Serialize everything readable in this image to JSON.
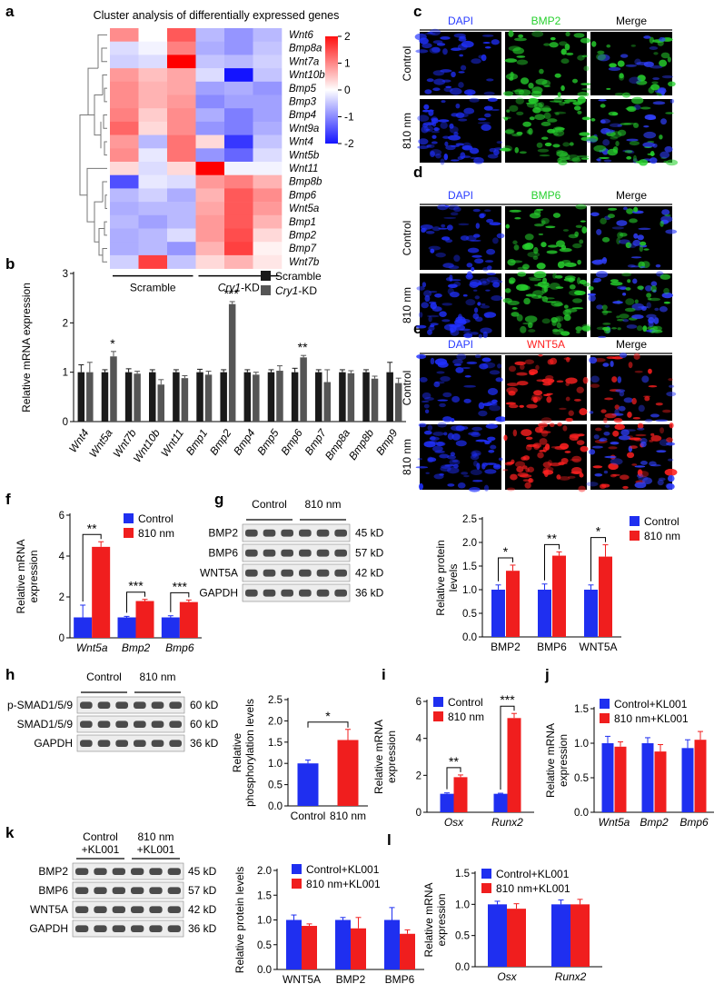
{
  "panel_letters": [
    "a",
    "b",
    "c",
    "d",
    "e",
    "f",
    "g",
    "h",
    "i",
    "j",
    "k",
    "l"
  ],
  "colors": {
    "blue": "#1f2ff0",
    "red": "#f01e1e",
    "black": "#1a1a1a",
    "gray": "#555555"
  },
  "heatmap": {
    "title": "Cluster analysis of differentially expressed genes",
    "genes": [
      "Wnt6",
      "Bmp8a",
      "Wnt7a",
      "Wnt10b",
      "Bmp5",
      "Bmp3",
      "Bmp4",
      "Wnt9a",
      "Wnt4",
      "Wnt5b",
      "Wnt11",
      "Bmp8b",
      "Bmp6",
      "Wnt5a",
      "Bmp1",
      "Bmp2",
      "Bmp7",
      "Wnt7b"
    ],
    "groups": [
      "Scramble",
      "Cry1-KD"
    ],
    "scale_ticks": [
      "2",
      "1",
      "0",
      "-1",
      "-2"
    ],
    "matrix": [
      [
        0.9,
        0.0,
        1.3,
        -0.6,
        -0.9,
        -0.6
      ],
      [
        -0.3,
        -0.1,
        1.0,
        -0.7,
        -0.9,
        -0.5
      ],
      [
        -0.4,
        -0.3,
        2.0,
        -0.5,
        -0.6,
        -0.4
      ],
      [
        0.8,
        0.5,
        0.7,
        -0.3,
        -2.0,
        -0.5
      ],
      [
        0.9,
        0.6,
        0.7,
        -0.8,
        -0.7,
        -0.9
      ],
      [
        0.9,
        0.6,
        0.8,
        -1.0,
        -0.8,
        -0.8
      ],
      [
        1.0,
        0.4,
        0.9,
        -0.7,
        -1.1,
        -0.8
      ],
      [
        1.2,
        0.3,
        0.9,
        -0.9,
        -1.1,
        -0.7
      ],
      [
        0.8,
        -0.6,
        1.1,
        0.3,
        -1.7,
        -0.5
      ],
      [
        0.9,
        -0.2,
        1.1,
        -0.9,
        -1.3,
        -0.3
      ],
      [
        0.3,
        -0.3,
        0.3,
        2.0,
        -0.1,
        -0.1
      ],
      [
        -1.5,
        -0.2,
        -0.3,
        0.8,
        1.0,
        0.6
      ],
      [
        -0.6,
        -0.4,
        -0.7,
        0.6,
        1.3,
        0.9
      ],
      [
        -0.7,
        -0.6,
        -0.6,
        0.7,
        1.3,
        0.8
      ],
      [
        -0.6,
        -0.8,
        -0.6,
        0.8,
        1.3,
        0.6
      ],
      [
        -0.7,
        -0.6,
        -0.3,
        0.8,
        1.4,
        0.3
      ],
      [
        -0.7,
        -0.6,
        -0.9,
        0.6,
        1.5,
        0.1
      ],
      [
        -0.4,
        1.5,
        -0.5,
        0.3,
        0.6,
        0.2
      ]
    ]
  },
  "micro": {
    "c": {
      "cols": [
        "DAPI",
        "BMP2",
        "Merge"
      ],
      "rows": [
        "Control",
        "810 nm"
      ],
      "marker_color": "#27d12e"
    },
    "d": {
      "cols": [
        "DAPI",
        "BMP6",
        "Merge"
      ],
      "rows": [
        "Control",
        "810 nm"
      ],
      "marker_color": "#27d12e"
    },
    "e": {
      "cols": [
        "DAPI",
        "WNT5A",
        "Merge"
      ],
      "rows": [
        "Control",
        "810 nm"
      ],
      "marker_color": "#ff2020"
    }
  },
  "blots": {
    "g": {
      "group_labels": [
        "Control",
        "810 nm"
      ],
      "rows": [
        [
          "BMP2",
          "45 kD"
        ],
        [
          "BMP6",
          "57 kD"
        ],
        [
          "WNT5A",
          "42 kD"
        ],
        [
          "GAPDH",
          "36 kD"
        ]
      ]
    },
    "h": {
      "group_labels": [
        "Control",
        "810 nm"
      ],
      "rows": [
        [
          "p-SMAD1/5/9",
          "60 kD"
        ],
        [
          "SMAD1/5/9",
          "60 kD"
        ],
        [
          "GAPDH",
          "36 kD"
        ]
      ]
    },
    "k": {
      "group_labels": [
        "Control\n+KL001",
        "810 nm\n+KL001"
      ],
      "rows": [
        [
          "BMP2",
          "45 kD"
        ],
        [
          "BMP6",
          "57 kD"
        ],
        [
          "WNT5A",
          "42 kD"
        ],
        [
          "GAPDH",
          "36 kD"
        ]
      ]
    }
  },
  "chart_data": [
    {
      "panel": "b",
      "type": "bar",
      "ylabel": "Relative mRNA expression",
      "ylim": [
        0,
        3
      ],
      "yticks": [
        0,
        1,
        2,
        3
      ],
      "categories": [
        "Wnt4",
        "Wnt5a",
        "Wnt7b",
        "Wnt10b",
        "Wnt11",
        "Bmp1",
        "Bmp2",
        "Bmp4",
        "Bmp5",
        "Bmp6",
        "Bmp7",
        "Bmp8a",
        "Bmp8b",
        "Bmp9"
      ],
      "series": [
        {
          "name": "Scramble",
          "values": [
            1,
            1,
            1,
            1,
            1,
            1,
            1,
            1,
            1,
            1,
            1,
            1,
            1,
            1
          ],
          "errors": [
            0.15,
            0.05,
            0.07,
            0.05,
            0.05,
            0.06,
            0.05,
            0.05,
            0.05,
            0.08,
            0.05,
            0.05,
            0.05,
            0.2
          ]
        },
        {
          "name": "Cry1-KD",
          "values": [
            1.0,
            1.32,
            0.97,
            0.75,
            0.88,
            0.95,
            2.38,
            0.95,
            1.03,
            1.3,
            0.8,
            0.98,
            0.87,
            0.78
          ],
          "errors": [
            0.2,
            0.1,
            0.05,
            0.1,
            0.05,
            0.07,
            0.05,
            0.05,
            0.1,
            0.04,
            0.25,
            0.05,
            0.05,
            0.1
          ]
        }
      ],
      "significance": [
        {
          "index": 1,
          "label": "*"
        },
        {
          "index": 6,
          "label": "***"
        },
        {
          "index": 9,
          "label": "**"
        }
      ]
    },
    {
      "panel": "f",
      "type": "bar",
      "ylabel": "Relative mRNA\nexpression",
      "ylim": [
        0,
        6
      ],
      "yticks": [
        0,
        2,
        4,
        6
      ],
      "categories": [
        "Wnt5a",
        "Bmp2",
        "Bmp6"
      ],
      "series": [
        {
          "name": "Control",
          "values": [
            1,
            1,
            1
          ],
          "errors": [
            0.6,
            0.05,
            0.08
          ]
        },
        {
          "name": "810 nm",
          "values": [
            4.45,
            1.8,
            1.75
          ],
          "errors": [
            0.25,
            0.08,
            0.1
          ]
        }
      ],
      "significance": [
        {
          "index": 0,
          "label": "**"
        },
        {
          "index": 1,
          "label": "***"
        },
        {
          "index": 2,
          "label": "***"
        }
      ]
    },
    {
      "panel": "g",
      "type": "bar",
      "ylabel": "Relative protein\nlevels",
      "ylim": [
        0,
        2.5
      ],
      "yticks": [
        0,
        0.5,
        1,
        1.5,
        2,
        2.5
      ],
      "categories": [
        "BMP2",
        "BMP6",
        "WNT5A"
      ],
      "series": [
        {
          "name": "Control",
          "values": [
            1,
            1,
            1
          ],
          "errors": [
            0.1,
            0.12,
            0.1
          ]
        },
        {
          "name": "810 nm",
          "values": [
            1.4,
            1.72,
            1.7
          ],
          "errors": [
            0.12,
            0.08,
            0.25
          ]
        }
      ],
      "significance": [
        {
          "index": 0,
          "label": "*"
        },
        {
          "index": 1,
          "label": "**"
        },
        {
          "index": 2,
          "label": "*"
        }
      ]
    },
    {
      "panel": "h",
      "type": "bar",
      "ylabel": "Relative\nphosphorylation levels",
      "ylim": [
        0,
        2.5
      ],
      "yticks": [
        0,
        0.5,
        1,
        1.5,
        2,
        2.5
      ],
      "categories": [
        "Control",
        "810 nm"
      ],
      "series": [
        {
          "name": "",
          "values": [
            1.0,
            1.55
          ],
          "errors": [
            0.08,
            0.25
          ],
          "colors": [
            "blue",
            "red"
          ]
        }
      ],
      "significance": [
        {
          "pair": [
            0,
            1
          ],
          "label": "*"
        }
      ]
    },
    {
      "panel": "i",
      "type": "bar",
      "ylabel": "Relative mRNA\nexpression",
      "ylim": [
        0,
        6
      ],
      "yticks": [
        0,
        2,
        4,
        6
      ],
      "categories": [
        "Osx",
        "Runx2"
      ],
      "series": [
        {
          "name": "Control",
          "values": [
            1,
            1
          ],
          "errors": [
            0.05,
            0.03
          ]
        },
        {
          "name": "810 nm",
          "values": [
            1.9,
            5.1
          ],
          "errors": [
            0.12,
            0.25
          ]
        }
      ],
      "significance": [
        {
          "index": 0,
          "label": "**"
        },
        {
          "index": 1,
          "label": "***"
        }
      ]
    },
    {
      "panel": "j",
      "type": "bar",
      "ylabel": "Relative mRNA\nexpression",
      "ylim": [
        0,
        1.5
      ],
      "yticks": [
        0.0,
        0.5,
        1.0,
        1.5
      ],
      "categories": [
        "Wnt5a",
        "Bmp2",
        "Bmp6"
      ],
      "series": [
        {
          "name": "Control+KL001",
          "values": [
            1.0,
            1.0,
            0.93
          ],
          "errors": [
            0.1,
            0.08,
            0.12
          ]
        },
        {
          "name": "810 nm+KL001",
          "values": [
            0.95,
            0.88,
            1.05
          ],
          "errors": [
            0.07,
            0.1,
            0.12
          ]
        }
      ],
      "significance": []
    },
    {
      "panel": "k",
      "type": "bar",
      "ylabel": "Relative protein levels",
      "ylim": [
        0,
        2.0
      ],
      "yticks": [
        0.0,
        0.5,
        1.0,
        1.5,
        2.0
      ],
      "categories": [
        "WNT5A",
        "BMP2",
        "BMP6"
      ],
      "series": [
        {
          "name": "Control+KL001",
          "values": [
            1.0,
            1.0,
            1.0
          ],
          "errors": [
            0.1,
            0.05,
            0.25
          ]
        },
        {
          "name": "810 nm+KL001",
          "values": [
            0.88,
            0.83,
            0.72
          ],
          "errors": [
            0.04,
            0.22,
            0.08
          ]
        }
      ],
      "significance": []
    },
    {
      "panel": "l",
      "type": "bar",
      "ylabel": "Relative mRNA\nexpression",
      "ylim": [
        0,
        1.5
      ],
      "yticks": [
        0.0,
        0.5,
        1.0,
        1.5
      ],
      "categories": [
        "Osx",
        "Runx2"
      ],
      "series": [
        {
          "name": "Control+KL001",
          "values": [
            1.0,
            1.0
          ],
          "errors": [
            0.05,
            0.07
          ]
        },
        {
          "name": "810 nm+KL001",
          "values": [
            0.93,
            1.0
          ],
          "errors": [
            0.08,
            0.08
          ]
        }
      ],
      "significance": []
    }
  ]
}
